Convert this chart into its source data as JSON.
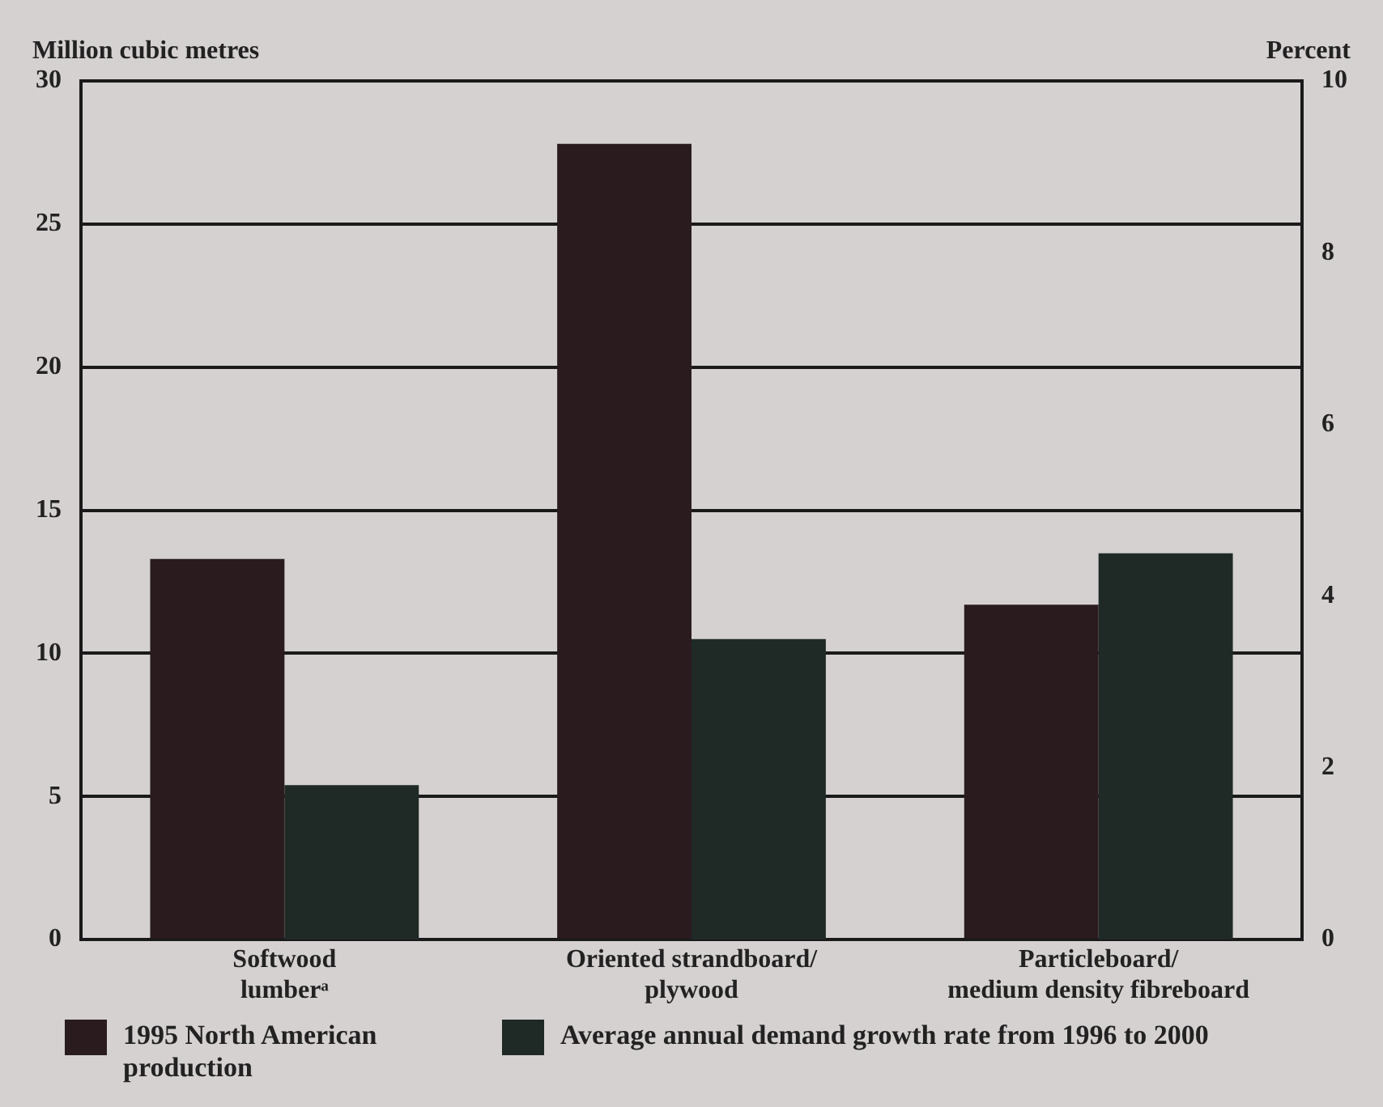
{
  "chart_data": {
    "type": "bar",
    "ylabel": "Million cubic metres",
    "y2label": "Percent",
    "categories": [
      "Softwood\nlumberᵃ",
      "Oriented strandboard/\nplywood",
      "Particleboard/\nmedium density fibreboard"
    ],
    "series": [
      {
        "name": "1995 North American production",
        "color": "#2a1c1e",
        "values": [
          13.3,
          27.8,
          11.7
        ]
      },
      {
        "name": "Average annual demand growth rate from 1996 to 2000",
        "color": "#1f2a26",
        "values": [
          1.8,
          3.5,
          4.5
        ],
        "axis": "y2"
      }
    ],
    "ylim": [
      0,
      30
    ],
    "yticks": [
      0,
      5,
      10,
      15,
      20,
      25,
      30
    ],
    "y2lim": [
      0,
      10
    ],
    "y2ticks": [
      0,
      2,
      4,
      6,
      8,
      10
    ],
    "grid": "y",
    "legend": "bottom"
  }
}
